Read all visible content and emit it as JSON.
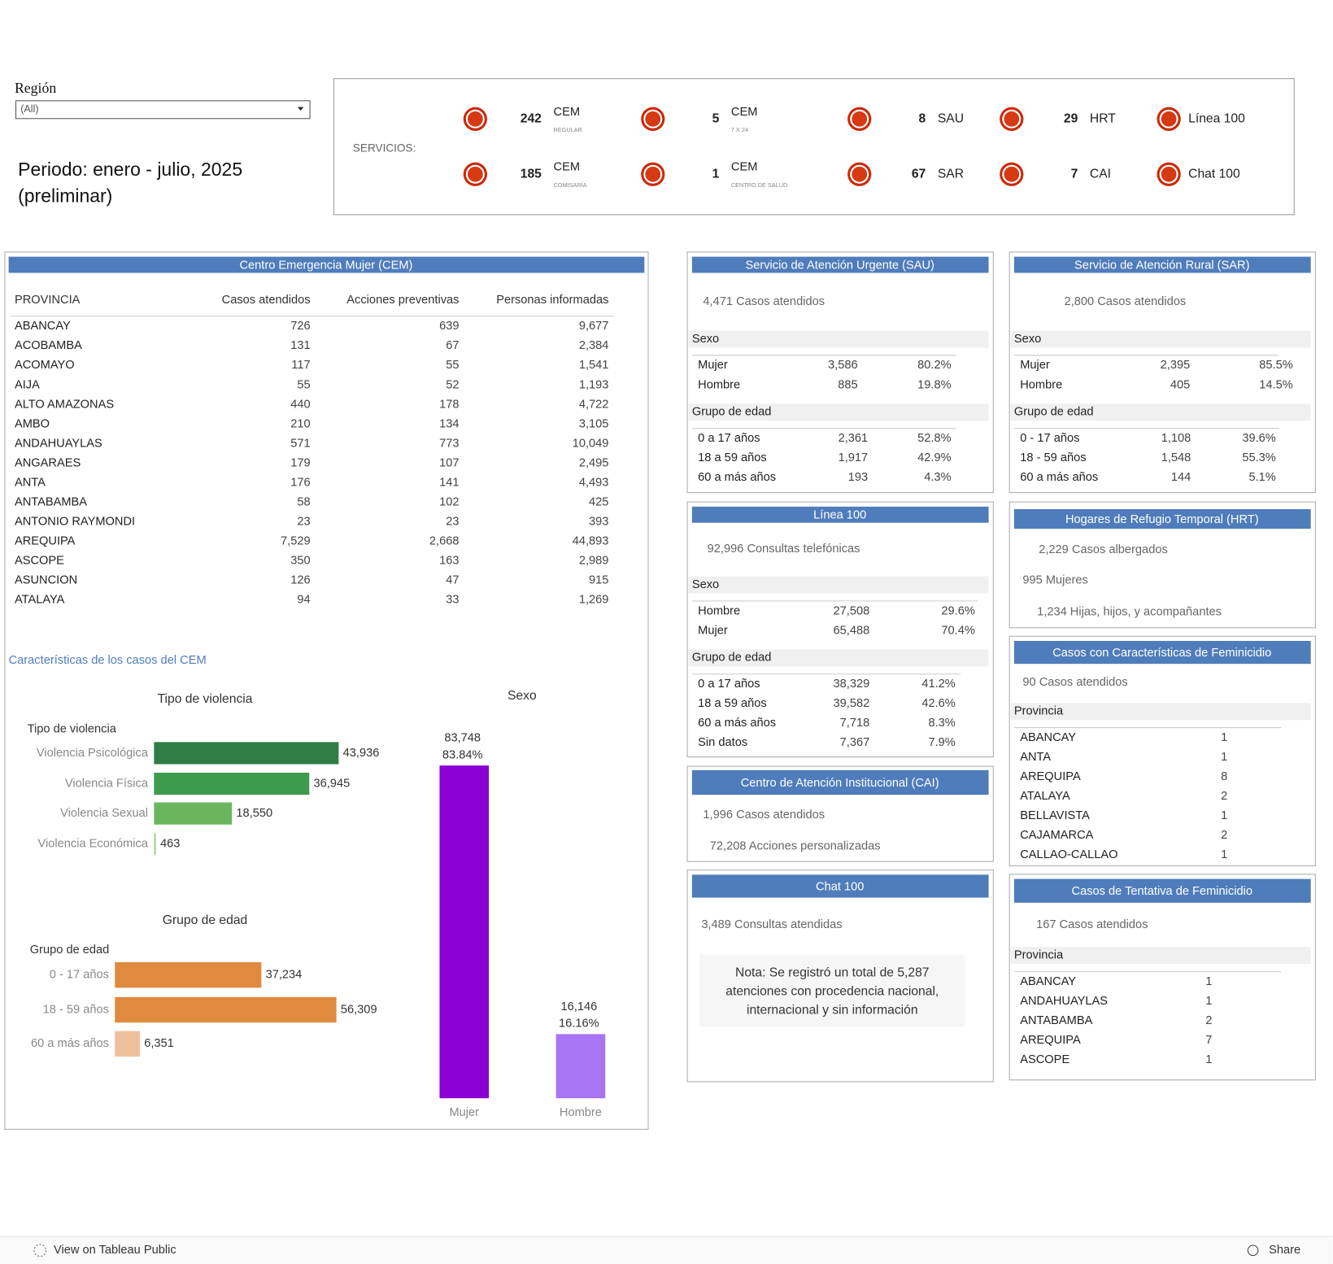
{
  "filter": {
    "label": "Región",
    "value": "(All)"
  },
  "period": [
    "Periodo: enero - julio, 2025",
    "(preliminar)"
  ],
  "services": {
    "label": "SERVICIOS:",
    "items": [
      {
        "value": "242",
        "name": "CEM",
        "sub": "REGULAR"
      },
      {
        "value": "5",
        "name": "CEM",
        "sub": "7 X 24"
      },
      {
        "value": "8",
        "name": "SAU"
      },
      {
        "value": "29",
        "name": "HRT"
      },
      {
        "name": "Línea 100"
      },
      {
        "value": "185",
        "name": "CEM",
        "sub": "COMISARÍA"
      },
      {
        "value": "1",
        "name": "CEM",
        "sub": "CENTRO DE SALUD"
      },
      {
        "value": "67",
        "name": "SAR"
      },
      {
        "value": "7",
        "name": "CAI"
      },
      {
        "name": "Chat 100"
      }
    ]
  },
  "cem": {
    "title": "Centro Emergencia Mujer (CEM)",
    "columns": [
      "PROVINCIA",
      "Casos atendidos",
      "Acciones preventivas",
      "Personas informadas"
    ],
    "rows": [
      [
        "ABANCAY",
        "726",
        "639",
        "9,677"
      ],
      [
        "ACOBAMBA",
        "131",
        "67",
        "2,384"
      ],
      [
        "ACOMAYO",
        "117",
        "55",
        "1,541"
      ],
      [
        "AIJA",
        "55",
        "52",
        "1,193"
      ],
      [
        "ALTO AMAZONAS",
        "440",
        "178",
        "4,722"
      ],
      [
        "AMBO",
        "210",
        "134",
        "3,105"
      ],
      [
        "ANDAHUAYLAS",
        "571",
        "773",
        "10,049"
      ],
      [
        "ANGARAES",
        "179",
        "107",
        "2,495"
      ],
      [
        "ANTA",
        "176",
        "141",
        "4,493"
      ],
      [
        "ANTABAMBA",
        "58",
        "102",
        "425"
      ],
      [
        "ANTONIO RAYMONDI",
        "23",
        "23",
        "393"
      ],
      [
        "AREQUIPA",
        "7,529",
        "2,668",
        "44,893"
      ],
      [
        "ASCOPE",
        "350",
        "163",
        "2,989"
      ],
      [
        "ASUNCION",
        "126",
        "47",
        "915"
      ],
      [
        "ATALAYA",
        "94",
        "33",
        "1,269"
      ]
    ]
  },
  "characteristics_title": "Características de los casos del CEM",
  "chart_data": [
    {
      "type": "bar",
      "orientation": "horizontal",
      "title": "Tipo de violencia",
      "axis_label": "Tipo de violencia",
      "categories": [
        "Violencia Psicológica",
        "Violencia Física",
        "Violencia Sexual",
        "Violencia Económica"
      ],
      "values": [
        43936,
        36945,
        18550,
        463
      ],
      "value_labels": [
        "43,936",
        "36,945",
        "18,550",
        "463"
      ],
      "colors": [
        "#2f7d46",
        "#3e9a4f",
        "#6bb55f",
        "#a9d69b"
      ],
      "xlim": [
        0,
        55000
      ]
    },
    {
      "type": "bar",
      "orientation": "horizontal",
      "title": "Grupo de edad",
      "axis_label": "Grupo de edad",
      "categories": [
        "0 - 17 años",
        "18 - 59 años",
        "60 a más años"
      ],
      "values": [
        37234,
        56309,
        6351
      ],
      "value_labels": [
        "37,234",
        "56,309",
        "6,351"
      ],
      "colors": [
        "#df8a3e",
        "#df8a3e",
        "#edc09c"
      ],
      "xlim": [
        0,
        70000
      ]
    },
    {
      "type": "bar",
      "orientation": "vertical",
      "title": "Sexo",
      "categories": [
        "Mujer",
        "Hombre"
      ],
      "values": [
        83748,
        16146
      ],
      "value_labels": [
        "83,748",
        "16,146"
      ],
      "percent_labels": [
        "83.84%",
        "16.16%"
      ],
      "colors": [
        "#8a00d4",
        "#a875f5"
      ],
      "ylim": [
        0,
        95000
      ]
    }
  ],
  "sau": {
    "title": "Servicio de Atención Urgente (SAU)",
    "summary": "4,471 Casos atendidos",
    "sections": [
      {
        "heading": "Sexo",
        "rows": [
          [
            "Mujer",
            "3,586",
            "80.2%"
          ],
          [
            "Hombre",
            "885",
            "19.8%"
          ]
        ]
      },
      {
        "heading": "Grupo de edad",
        "rows": [
          [
            "0 a 17 años",
            "2,361",
            "52.8%"
          ],
          [
            "18 a 59 años",
            "1,917",
            "42.9%"
          ],
          [
            "60 a más años",
            "193",
            "4.3%"
          ]
        ]
      }
    ]
  },
  "sar": {
    "title": "Servicio de Atención Rural (SAR)",
    "summary": "2,800 Casos atendidos",
    "sections": [
      {
        "heading": "Sexo",
        "rows": [
          [
            "Mujer",
            "2,395",
            "85.5%"
          ],
          [
            "Hombre",
            "405",
            "14.5%"
          ]
        ]
      },
      {
        "heading": "Grupo de edad",
        "rows": [
          [
            "0 - 17 años",
            "1,108",
            "39.6%"
          ],
          [
            "18 - 59 años",
            "1,548",
            "55.3%"
          ],
          [
            "60 a más años",
            "144",
            "5.1%"
          ]
        ]
      }
    ]
  },
  "linea100": {
    "title": "Línea 100",
    "summary": "92,996 Consultas telefónicas",
    "sections": [
      {
        "heading": "Sexo",
        "rows": [
          [
            "Hombre",
            "27,508",
            "29.6%"
          ],
          [
            "Mujer",
            "65,488",
            "70.4%"
          ]
        ]
      },
      {
        "heading": "Grupo de edad",
        "rows": [
          [
            "0 a 17 años",
            "38,329",
            "41.2%"
          ],
          [
            "18 a 59 años",
            "39,582",
            "42.6%"
          ],
          [
            "60 a más años",
            "7,718",
            "8.3%"
          ],
          [
            "Sin datos",
            "7,367",
            "7.9%"
          ]
        ]
      }
    ]
  },
  "hrt": {
    "title": "Hogares de Refugio Temporal (HRT)",
    "lines": [
      "2,229 Casos albergados",
      "995 Mujeres",
      "1,234 Hijas, hijos, y acompañantes"
    ]
  },
  "feminicidio": {
    "title": "Casos con Características de Feminicidio",
    "summary": "90 Casos atendidos",
    "sections": [
      {
        "heading": "Provincia",
        "rows": [
          [
            "ABANCAY",
            "1"
          ],
          [
            "ANTA",
            "1"
          ],
          [
            "AREQUIPA",
            "8"
          ],
          [
            "ATALAYA",
            "2"
          ],
          [
            "BELLAVISTA",
            "1"
          ],
          [
            "CAJAMARCA",
            "2"
          ],
          [
            "CALLAO-CALLAO",
            "1"
          ]
        ]
      }
    ]
  },
  "cai": {
    "title": "Centro de Atención Institucional (CAI)",
    "lines": [
      "1,996 Casos atendidos",
      "72,208 Acciones personalizadas"
    ]
  },
  "chat100": {
    "title": "Chat 100",
    "lines": [
      "3,489 Consultas atendidas"
    ],
    "note": [
      "Nota: Se registró un total de 5,287",
      "atenciones con procedencia nacional,",
      "internacional y sin información"
    ]
  },
  "tentativa": {
    "title": "Casos de Tentativa de Feminicidio",
    "summary": "167 Casos atendidos",
    "sections": [
      {
        "heading": "Provincia",
        "rows": [
          [
            "ABANCAY",
            "1"
          ],
          [
            "ANDAHUAYLAS",
            "1"
          ],
          [
            "ANTABAMBA",
            "2"
          ],
          [
            "AREQUIPA",
            "7"
          ],
          [
            "ASCOPE",
            "1"
          ]
        ]
      }
    ]
  },
  "footer": {
    "link": "View on Tableau Public",
    "share": "Share"
  }
}
